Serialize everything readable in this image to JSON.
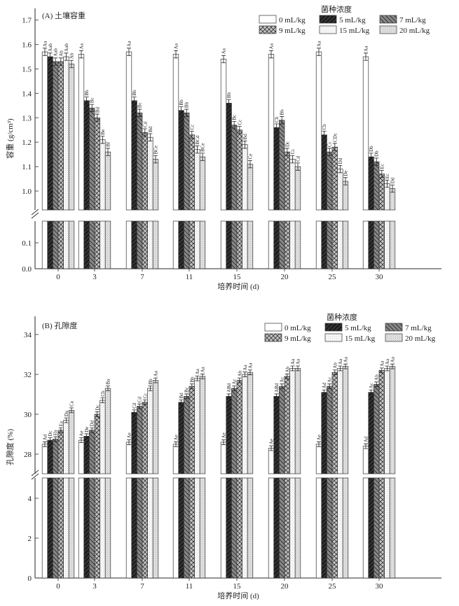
{
  "chart_data": [
    {
      "type": "bar",
      "title": "(A) 土壤容重",
      "xlabel": "培养时间 (d)",
      "ylabel": "容重 (g/cm³)",
      "legend_title": "菌种浓度",
      "legend_position": "top-right",
      "categories": [
        "0",
        "3",
        "7",
        "11",
        "15",
        "20",
        "25",
        "30"
      ],
      "axis_break": true,
      "ylim_lower": [
        0,
        0.17
      ],
      "ylim_upper": [
        0.93,
        1.75
      ],
      "yticks_lower": [
        "0.0",
        "0.1"
      ],
      "yticks_upper": [
        "1.0",
        "1.1",
        "1.2",
        "1.3",
        "1.4",
        "1.5",
        "1.6",
        "1.7"
      ],
      "error_approx": 0.015,
      "series": [
        {
          "name": "0 mL/kg",
          "values": [
            1.57,
            1.56,
            1.57,
            1.56,
            1.54,
            1.56,
            1.57,
            1.55
          ],
          "labels": [
            "Aa",
            "Aa",
            "Aa",
            "Aa",
            "Aa",
            "Aa",
            "Aa",
            "Aa"
          ]
        },
        {
          "name": "5 mL/kg",
          "values": [
            1.55,
            1.37,
            1.37,
            1.33,
            1.36,
            1.26,
            1.23,
            1.14
          ],
          "labels": [
            "Aab",
            "Bb",
            "Bb",
            "Bb",
            "Bb",
            "Cb",
            "Cb",
            "Db"
          ]
        },
        {
          "name": "7 mL/kg",
          "values": [
            1.53,
            1.34,
            1.32,
            1.32,
            1.27,
            1.29,
            1.16,
            1.12
          ],
          "labels": [
            "Aab",
            "Bc",
            "Bc",
            "Bb",
            "Bc",
            "Bb",
            "Cc",
            "Db"
          ]
        },
        {
          "name": "9 mL/kg",
          "values": [
            1.53,
            1.3,
            1.24,
            1.23,
            1.25,
            1.16,
            1.18,
            1.07
          ],
          "labels": [
            "Ab",
            "Bd",
            "Cd",
            "Cc",
            "Cc",
            "Dc",
            "CDc",
            "Ec"
          ]
        },
        {
          "name": "15 mL/kg",
          "values": [
            1.55,
            1.21,
            1.22,
            1.17,
            1.19,
            1.13,
            1.09,
            1.03
          ],
          "labels": [
            "Aab",
            "Be",
            "Bd",
            "BCd",
            "Bd",
            "Cc",
            "Dd",
            "Ec"
          ]
        },
        {
          "name": "20 mL/kg",
          "values": [
            1.52,
            1.16,
            1.13,
            1.14,
            1.11,
            1.1,
            1.04,
            1.01
          ],
          "labels": [
            "Ab",
            "Bf",
            "BCe",
            "BCe",
            "Ce",
            "Cd",
            "De",
            "Dd"
          ]
        }
      ]
    },
    {
      "type": "bar",
      "title": "(B) 孔隙度",
      "xlabel": "培养时间 (d)",
      "ylabel": "孔隙度 (%)",
      "legend_title": "菌种浓度",
      "legend_position": "top-right",
      "categories": [
        "0",
        "3",
        "7",
        "11",
        "15",
        "20",
        "25",
        "30"
      ],
      "axis_break": true,
      "ylim_lower": [
        0,
        5.1
      ],
      "ylim_upper": [
        27,
        35
      ],
      "yticks_lower": [
        "0",
        "2",
        "4"
      ],
      "yticks_upper": [
        "28",
        "30",
        "32",
        "34"
      ],
      "error_approx": 0.12,
      "series": [
        {
          "name": "0 mL/kg",
          "values": [
            28.5,
            28.7,
            28.6,
            28.5,
            28.6,
            28.3,
            28.5,
            28.4
          ],
          "labels": [
            "Ad",
            "Ae",
            "Ae",
            "Ae",
            "Ae",
            "Ae",
            "Ae",
            "Ad"
          ]
        },
        {
          "name": "5 mL/kg",
          "values": [
            28.7,
            28.9,
            30.1,
            30.6,
            30.9,
            30.9,
            31.1,
            31.1
          ],
          "labels": [
            "Dc",
            "De",
            "Cd",
            "Bd",
            "ABd",
            "ABd",
            "Ad",
            "Ac"
          ]
        },
        {
          "name": "7 mL/kg",
          "values": [
            28.75,
            29.2,
            30.4,
            30.9,
            31.3,
            31.4,
            31.4,
            31.5
          ],
          "labels": [
            "Eb",
            "Dd",
            "Cd",
            "Bc",
            "Ac",
            "Ac",
            "Ac",
            "Ab"
          ]
        },
        {
          "name": "9 mL/kg",
          "values": [
            29.2,
            30.0,
            30.6,
            31.4,
            31.7,
            31.9,
            32.1,
            32.2
          ],
          "labels": [
            "Ea",
            "Dc",
            "Cc",
            "Bb",
            "Ab",
            "Ab",
            "Ab",
            "Aa"
          ]
        },
        {
          "name": "15 mL/kg",
          "values": [
            29.7,
            30.7,
            31.3,
            31.8,
            32.0,
            32.3,
            32.3,
            32.3
          ],
          "labels": [
            "Da",
            "Cb",
            "Bb",
            "Aa",
            "Aa",
            "Aa",
            "Aa",
            "Aa"
          ]
        },
        {
          "name": "20 mL/kg",
          "values": [
            30.2,
            31.3,
            31.7,
            31.9,
            32.1,
            32.3,
            32.4,
            32.4
          ],
          "labels": [
            "Ca",
            "Ba",
            "Aa",
            "Aa",
            "Aa",
            "Aa",
            "Aa",
            "Aa"
          ]
        }
      ]
    }
  ]
}
